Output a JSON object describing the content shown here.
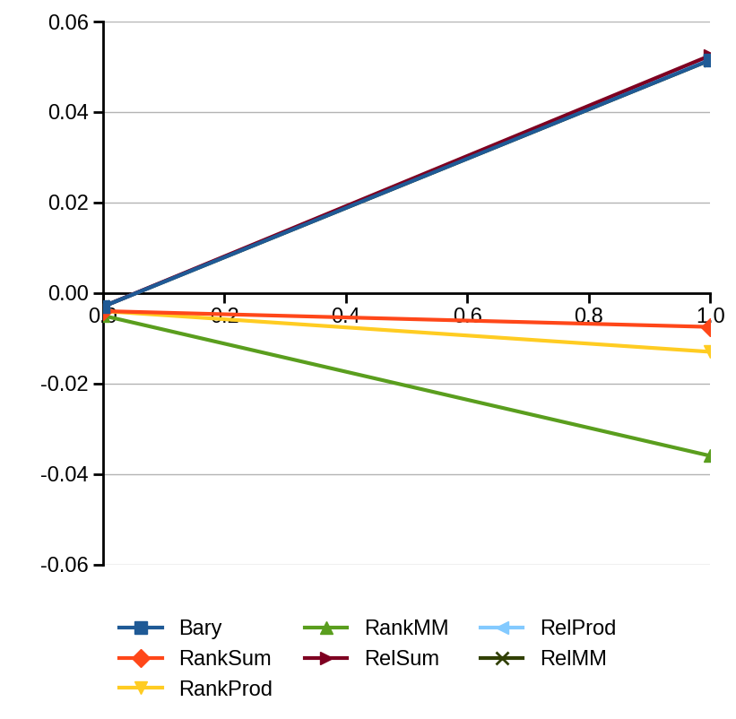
{
  "chart_data": {
    "type": "line",
    "x": [
      0.0,
      1.0
    ],
    "series": [
      {
        "name": "Bary",
        "color": "#1f5a96",
        "marker": "square",
        "values": [
          -0.003,
          0.0515
        ]
      },
      {
        "name": "RankSum",
        "color": "#ff4719",
        "marker": "diamond",
        "values": [
          -0.004,
          -0.0075
        ]
      },
      {
        "name": "RankProd",
        "color": "#ffcc22",
        "marker": "triangle_down",
        "values": [
          -0.004,
          -0.013
        ]
      },
      {
        "name": "RankMM",
        "color": "#5a9e1e",
        "marker": "triangle_up",
        "values": [
          -0.005,
          -0.036
        ]
      },
      {
        "name": "RelSum",
        "color": "#7e0021",
        "marker": "triangle_right",
        "values": [
          -0.003,
          0.0525
        ]
      },
      {
        "name": "RelProd",
        "color": "#83caff",
        "marker": "triangle_left",
        "values": [
          -0.003,
          0.052
        ]
      },
      {
        "name": "RelMM",
        "color": "#314004",
        "marker": "x",
        "values": [
          -0.003,
          0.0515
        ]
      }
    ],
    "xlim": [
      0.0,
      1.0
    ],
    "xticks": [
      {
        "value": 0.0,
        "label": "0.0"
      },
      {
        "value": 0.2,
        "label": "0.2"
      },
      {
        "value": 0.4,
        "label": "0.4"
      },
      {
        "value": 0.6,
        "label": "0.6"
      },
      {
        "value": 0.8,
        "label": "0.8"
      },
      {
        "value": 1.0,
        "label": "1.0"
      }
    ],
    "ylim": [
      -0.06,
      0.06
    ],
    "yticks": [
      {
        "value": -0.06,
        "label": "-0.06"
      },
      {
        "value": -0.04,
        "label": "-0.04"
      },
      {
        "value": -0.02,
        "label": "-0.02"
      },
      {
        "value": 0.0,
        "label": "0.00"
      },
      {
        "value": 0.02,
        "label": "0.02"
      },
      {
        "value": 0.04,
        "label": "0.04"
      },
      {
        "value": 0.06,
        "label": "0.06"
      }
    ],
    "grid": true,
    "legend": "lower center"
  }
}
